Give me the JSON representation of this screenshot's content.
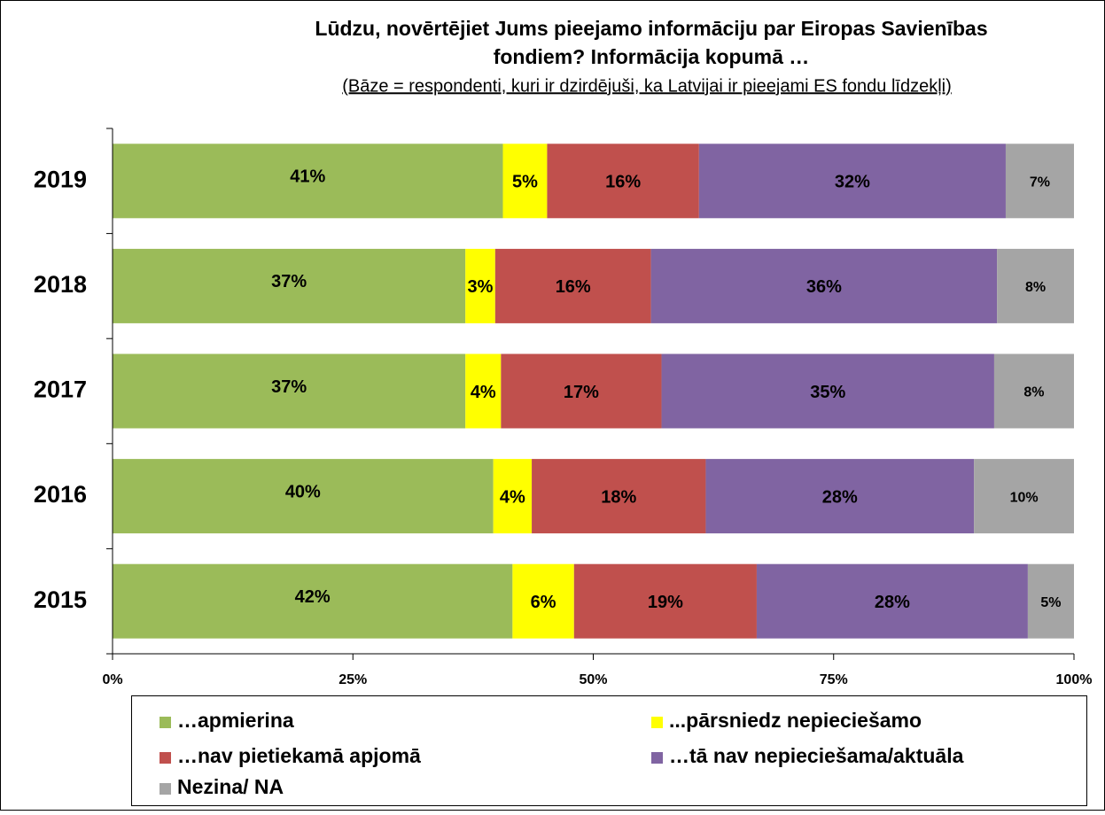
{
  "chart_data": {
    "type": "bar",
    "orientation": "horizontal",
    "stacked": true,
    "title": [
      "Lūdzu, novērtējiet Jums pieejamo informāciju par Eiropas Savienības",
      "fondiem? Informācija kopumā …"
    ],
    "subtitle": "(Bāze = respondenti, kuri ir dzirdējuši, ka Latvijai ir pieejami ES fondu līdzekļi)",
    "categories": [
      "2019",
      "2018",
      "2017",
      "2016",
      "2015"
    ],
    "series": [
      {
        "name": "…apmierina",
        "color": "#9bbb59",
        "values": [
          40.6,
          36.7,
          36.7,
          39.6,
          41.6
        ],
        "value_labels": [
          "41%",
          "37%",
          "37%",
          "40%",
          "42%"
        ]
      },
      {
        "name": "...pārsniedz nepieciešamo",
        "color": "#ffff00",
        "values": [
          4.6,
          3.1,
          3.7,
          4.0,
          6.4
        ],
        "value_labels": [
          "5%",
          "3%",
          "4%",
          "4%",
          "6%"
        ]
      },
      {
        "name": "…nav pietiekamā apjomā",
        "color": "#c0504d",
        "values": [
          15.8,
          16.2,
          16.7,
          18.1,
          19.0
        ],
        "value_labels": [
          "16%",
          "16%",
          "17%",
          "18%",
          "19%"
        ]
      },
      {
        "name": "…tā nav nepieciešama/aktuāla",
        "color": "#8064a2",
        "values": [
          31.9,
          36.0,
          34.6,
          27.9,
          28.2
        ],
        "value_labels": [
          "32%",
          "36%",
          "35%",
          "28%",
          "28%"
        ]
      },
      {
        "name": "Nezina/ NA",
        "color": "#a5a5a5",
        "values": [
          7.1,
          8.0,
          8.3,
          10.4,
          4.8
        ],
        "value_labels": [
          "7%",
          "8%",
          "8%",
          "10%",
          "5%"
        ]
      }
    ],
    "xlim": [
      0,
      100
    ],
    "xticks": [
      {
        "value": 0,
        "label": "0%"
      },
      {
        "value": 25,
        "label": "25%"
      },
      {
        "value": 50,
        "label": "50%"
      },
      {
        "value": 75,
        "label": "75%"
      },
      {
        "value": 100,
        "label": "100%"
      }
    ],
    "legend": "bottom"
  }
}
